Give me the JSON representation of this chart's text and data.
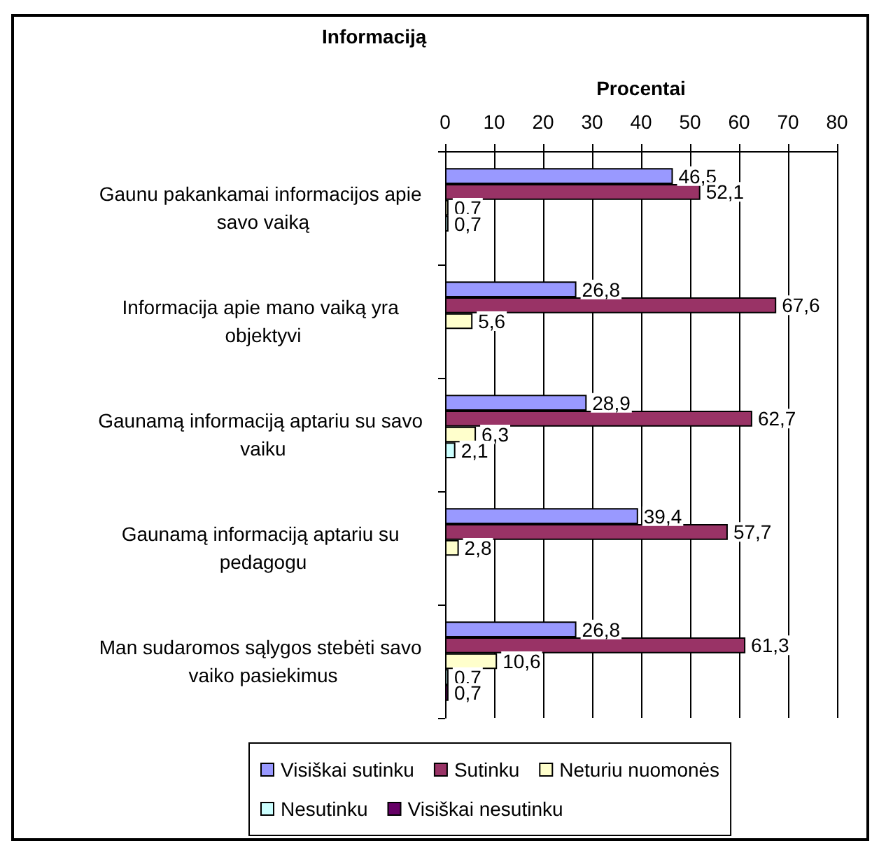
{
  "chart_data": {
    "type": "bar",
    "orientation": "horizontal",
    "title": "Informaciją",
    "xlabel": "Procentai",
    "categories": [
      "Gaunu pakankamai informacijos apie savo vaiką",
      "Informacija apie mano vaiką yra objektyvi",
      "Gaunamą informaciją aptariu su savo vaiku",
      "Gaunamą informaciją aptariu su pedagogu",
      "Man sudaromos sąlygos stebėti savo vaiko pasiekimus"
    ],
    "series": [
      {
        "name": "Visiškai sutinku",
        "color": "#9999ff",
        "values": [
          46.5,
          26.8,
          28.9,
          39.4,
          26.8
        ],
        "value_labels": [
          "46,5",
          "26,8",
          "28,9",
          "39,4",
          "26,8"
        ]
      },
      {
        "name": "Sutinku",
        "color": "#993366",
        "values": [
          52.1,
          67.6,
          62.7,
          57.7,
          61.3
        ],
        "value_labels": [
          "52,1",
          "67,6",
          "62,7",
          "57,7",
          "61,3"
        ]
      },
      {
        "name": "Neturiu nuomonės",
        "color": "#ffffcc",
        "values": [
          0.7,
          5.6,
          6.3,
          2.8,
          10.6
        ],
        "value_labels": [
          "0,7",
          "5,6",
          "6,3",
          "2,8",
          "10,6"
        ]
      },
      {
        "name": "Nesutinku",
        "color": "#ccffff",
        "values": [
          0.7,
          null,
          2.1,
          null,
          0.7
        ],
        "value_labels": [
          "0,7",
          null,
          "2,1",
          null,
          "0,7"
        ]
      },
      {
        "name": "Visiškai nesutinku",
        "color": "#660066",
        "values": [
          null,
          null,
          null,
          null,
          0.7
        ],
        "value_labels": [
          null,
          null,
          null,
          null,
          "0,7"
        ]
      }
    ],
    "xlim": [
      0,
      80
    ],
    "xticks": [
      0,
      10,
      20,
      30,
      40,
      50,
      60,
      70,
      80
    ],
    "grid": "x",
    "legend": "bottom"
  }
}
